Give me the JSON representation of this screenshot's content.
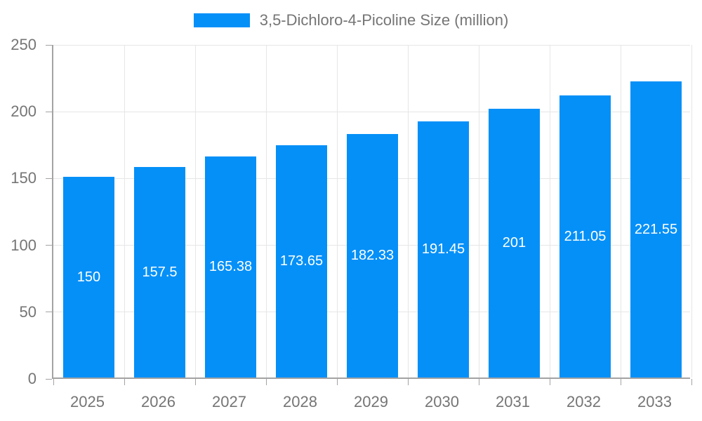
{
  "chart_data": {
    "type": "bar",
    "title": "3,5-Dichloro-4-Picoline Size (million)",
    "legend_entries": [
      "3,5-Dichloro-4-Picoline Size (million)"
    ],
    "legend_position": "top-center",
    "categories": [
      "2025",
      "2026",
      "2027",
      "2028",
      "2029",
      "2030",
      "2031",
      "2032",
      "2033"
    ],
    "values": [
      150,
      157.5,
      165.38,
      173.65,
      182.33,
      191.45,
      201,
      211.05,
      221.55
    ],
    "value_labels": [
      "150",
      "157.5",
      "165.38",
      "173.65",
      "182.33",
      "191.45",
      "201",
      "211.05",
      "221.55"
    ],
    "xlabel": "",
    "ylabel": "",
    "ylim": [
      0,
      250
    ],
    "yticks": [
      0,
      50,
      100,
      150,
      200,
      250
    ],
    "grid": true,
    "colors": {
      "bar": "#0590f8",
      "grid": "#e6e6e6",
      "axis": "#a3a3a3",
      "tick_label": "#757575",
      "value_label": "#ffffff",
      "background": "#ffffff"
    }
  }
}
